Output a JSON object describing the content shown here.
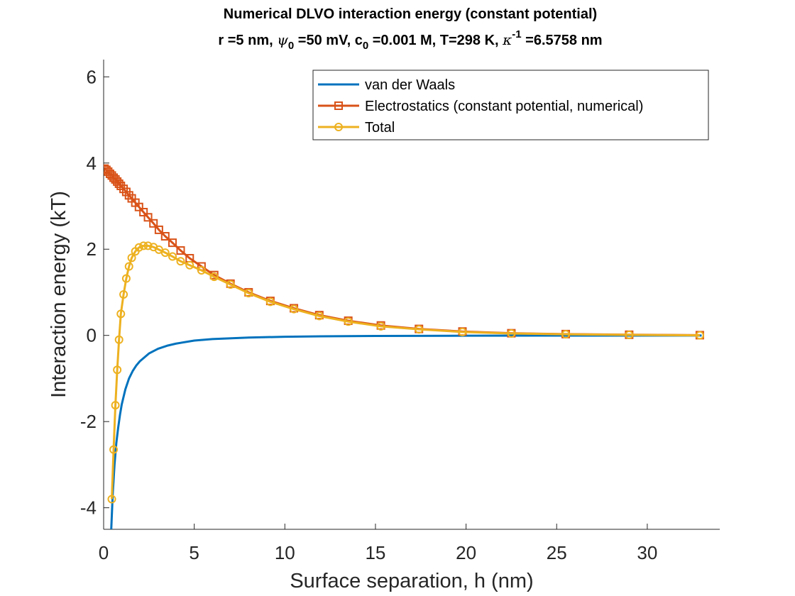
{
  "chart_data": {
    "type": "line",
    "title": "Numerical DLVO interaction energy (constant potential)",
    "subtitle": {
      "r": "r =5 nm, ",
      "psi_sym": "ψ",
      "psi_sub": "0",
      "psi_val": " =50 mV, c",
      "c_sub": "0",
      "c_val": " =0.001 M, T=298 K, ",
      "kappa_sym": "κ",
      "kappa_sup": "-1",
      "kappa_val": " =6.5758 nm"
    },
    "xlabel": "Surface separation, h (nm)",
    "ylabel": "Interaction energy (kT)",
    "xlim": [
      0,
      34
    ],
    "ylim": [
      -4.5,
      6.4
    ],
    "xticks": [
      0,
      5,
      10,
      15,
      20,
      25,
      30
    ],
    "yticks": [
      -4,
      -2,
      0,
      2,
      4,
      6
    ],
    "legend_position": "top-right",
    "grid": false,
    "series": [
      {
        "name": "van der Waals",
        "color": "#0072BD",
        "marker": "none",
        "x": [
          0.42,
          0.5,
          0.6,
          0.7,
          0.8,
          0.9,
          1.0,
          1.2,
          1.4,
          1.6,
          1.8,
          2.0,
          2.5,
          3.0,
          3.5,
          4.0,
          5.0,
          6.0,
          8.0,
          10.0,
          12.0,
          15.0,
          20.0,
          25.0,
          33.0
        ],
        "y": [
          -4.5,
          -3.7,
          -3.0,
          -2.5,
          -2.15,
          -1.85,
          -1.6,
          -1.25,
          -1.0,
          -0.83,
          -0.7,
          -0.6,
          -0.42,
          -0.31,
          -0.24,
          -0.19,
          -0.12,
          -0.085,
          -0.05,
          -0.032,
          -0.022,
          -0.014,
          -0.008,
          -0.005,
          -0.003
        ]
      },
      {
        "name": "Electrostatics (constant potential, numerical)",
        "color": "#D95319",
        "marker": "square",
        "x": [
          0.05,
          0.15,
          0.25,
          0.35,
          0.45,
          0.55,
          0.65,
          0.75,
          0.85,
          0.95,
          1.1,
          1.25,
          1.4,
          1.55,
          1.75,
          1.95,
          2.2,
          2.45,
          2.75,
          3.05,
          3.4,
          3.8,
          4.25,
          4.75,
          5.4,
          6.1,
          7.0,
          8.0,
          9.2,
          10.5,
          11.9,
          13.5,
          15.3,
          17.4,
          19.8,
          22.5,
          25.5,
          29.0,
          32.9
        ],
        "y": [
          3.87,
          3.84,
          3.8,
          3.75,
          3.71,
          3.66,
          3.62,
          3.57,
          3.52,
          3.47,
          3.4,
          3.33,
          3.25,
          3.18,
          3.08,
          2.98,
          2.86,
          2.74,
          2.6,
          2.45,
          2.3,
          2.15,
          1.97,
          1.79,
          1.6,
          1.4,
          1.2,
          1.0,
          0.8,
          0.63,
          0.47,
          0.34,
          0.23,
          0.15,
          0.09,
          0.05,
          0.03,
          0.015,
          0.005
        ]
      },
      {
        "name": "Total",
        "color": "#EDB120",
        "marker": "circle",
        "x": [
          0.45,
          0.55,
          0.65,
          0.75,
          0.85,
          0.95,
          1.1,
          1.25,
          1.4,
          1.55,
          1.75,
          1.95,
          2.2,
          2.45,
          2.75,
          3.05,
          3.4,
          3.8,
          4.25,
          4.75,
          5.4,
          6.1,
          7.0,
          8.0,
          9.2,
          10.5,
          11.9,
          13.5,
          15.3,
          17.4,
          19.8,
          22.5,
          25.5,
          29.0,
          32.9
        ],
        "y": [
          -3.8,
          -2.65,
          -1.62,
          -0.8,
          -0.1,
          0.5,
          0.95,
          1.32,
          1.6,
          1.8,
          1.95,
          2.04,
          2.08,
          2.08,
          2.05,
          1.99,
          1.92,
          1.83,
          1.72,
          1.63,
          1.51,
          1.36,
          1.18,
          0.98,
          0.78,
          0.61,
          0.45,
          0.32,
          0.21,
          0.14,
          0.08,
          0.045,
          0.025,
          0.012,
          0.002
        ]
      }
    ]
  }
}
